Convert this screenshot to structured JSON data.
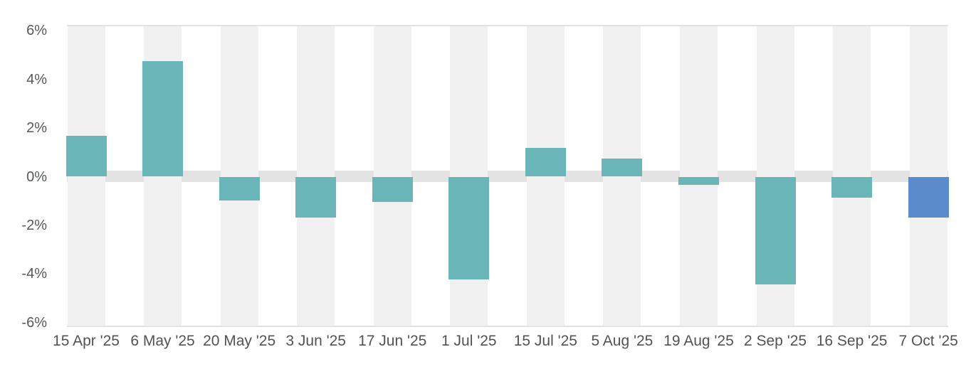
{
  "chart_data": {
    "type": "bar",
    "categories": [
      "15 Apr '25",
      "6 May '25",
      "20 May '25",
      "3 Jun '25",
      "17 Jun '25",
      "1 Jul '25",
      "15 Jul '25",
      "5 Aug '25",
      "19 Aug '25",
      "2 Sep '25",
      "16 Sep '25",
      "7 Oct '25"
    ],
    "values": [
      1.68,
      4.76,
      -0.97,
      -1.67,
      -1.05,
      -4.22,
      1.18,
      0.75,
      -0.34,
      -4.43,
      -0.87,
      -1.67
    ],
    "value_unit": "%",
    "title": "",
    "xlabel": "",
    "ylabel": "",
    "y_ticks": [
      {
        "value": 6,
        "label": "6%"
      },
      {
        "value": 4,
        "label": "4%"
      },
      {
        "value": 2,
        "label": "2%"
      },
      {
        "value": 0,
        "label": "0%"
      },
      {
        "value": -2,
        "label": "-2%"
      },
      {
        "value": -4,
        "label": "-4%"
      },
      {
        "value": -6,
        "label": "-6%"
      }
    ],
    "ylim": [
      -6.2,
      6.2
    ],
    "grid": "horizontal borders at top and bottom, thick band at zero, light background stripe behind each category",
    "legend": "none",
    "highlight_index": 11,
    "colors": {
      "bar_default": "#69b5b8",
      "bar_highlight": "#5c8bcc",
      "category_stripe": "#f1f1f1",
      "zero_band": "#e3e3e3",
      "border_line": "#e2e2e2",
      "y_tick_text": "#55585a",
      "x_tick_text": "#505356"
    }
  }
}
